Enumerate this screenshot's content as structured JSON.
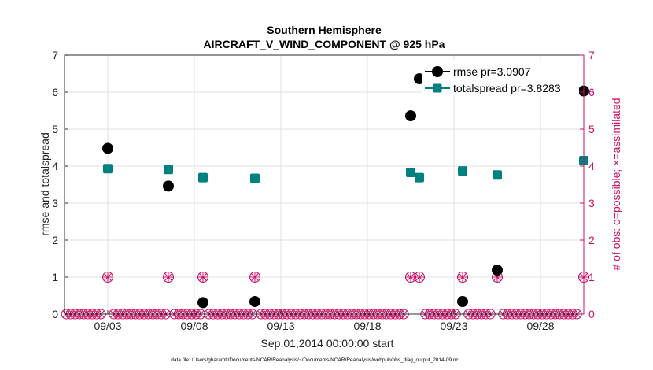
{
  "chart_data": {
    "type": "scatter",
    "title_line1": "Southern Hemisphere",
    "title_line2": "AIRCRAFT_V_WIND_COMPONENT @ 925 hPa",
    "xlabel": "Sep.01,2014 00:00:00 start",
    "ylabel_left": "rmse and totalspread",
    "ylabel_right": "# of obs: o=possible; ×=assimilated",
    "footnote": "data file: /Users/gharamti/Documents/NCAR/Reanalysis/~/Documents/NCAR/Reanalysis/webpub/obs_diag_output_2014-09.nc",
    "xlim": [
      0.5,
      30.5
    ],
    "ylim_left": [
      0,
      7
    ],
    "ylim_right": [
      0,
      7
    ],
    "x_ticks": [
      {
        "x": 3,
        "label": "09/03"
      },
      {
        "x": 8,
        "label": "09/08"
      },
      {
        "x": 13,
        "label": "09/13"
      },
      {
        "x": 18,
        "label": "09/18"
      },
      {
        "x": 23,
        "label": "09/23"
      },
      {
        "x": 28,
        "label": "09/28"
      }
    ],
    "y_ticks_left": [
      "0",
      "1",
      "2",
      "3",
      "4",
      "5",
      "6",
      "7"
    ],
    "y_ticks_right": [
      "0",
      "1",
      "2",
      "3",
      "4",
      "5",
      "6",
      "7"
    ],
    "legend": {
      "position": "top-right",
      "entries": [
        {
          "label": "rmse pr=3.0907",
          "series": "rmse"
        },
        {
          "label": "totalspread pr=3.8283",
          "series": "totalspread"
        }
      ]
    },
    "colors": {
      "rmse": "#000000",
      "totalspread": "#008080",
      "obs": "#cc1166",
      "grid": "#e0e0e0"
    },
    "series": [
      {
        "name": "rmse",
        "x": [
          3,
          6.5,
          8.5,
          11.5,
          20.5,
          21,
          23.5,
          25.5,
          30.5
        ],
        "y": [
          4.48,
          3.46,
          0.31,
          0.34,
          5.36,
          6.36,
          0.34,
          1.19,
          6.03
        ]
      },
      {
        "name": "totalspread",
        "x": [
          3,
          6.5,
          8.5,
          11.5,
          20.5,
          21,
          23.5,
          25.5,
          30.5
        ],
        "y": [
          3.93,
          3.91,
          3.69,
          3.67,
          3.83,
          3.69,
          3.87,
          3.76,
          4.15
        ]
      },
      {
        "name": "obs_possible",
        "x": [
          3,
          6.5,
          8.5,
          11.5,
          20.5,
          21,
          23.5,
          25.5,
          30.5
        ],
        "y": [
          1,
          1,
          1,
          1,
          1,
          1,
          1,
          1,
          1
        ]
      },
      {
        "name": "obs_assimilated",
        "x": [
          3,
          6.5,
          8.5,
          11.5,
          20.5,
          21,
          23.5,
          25.5,
          30.5
        ],
        "y": [
          1,
          1,
          1,
          1,
          1,
          1,
          1,
          1,
          1
        ]
      }
    ],
    "zero_obs_marker_spacing_days": 0.25
  }
}
